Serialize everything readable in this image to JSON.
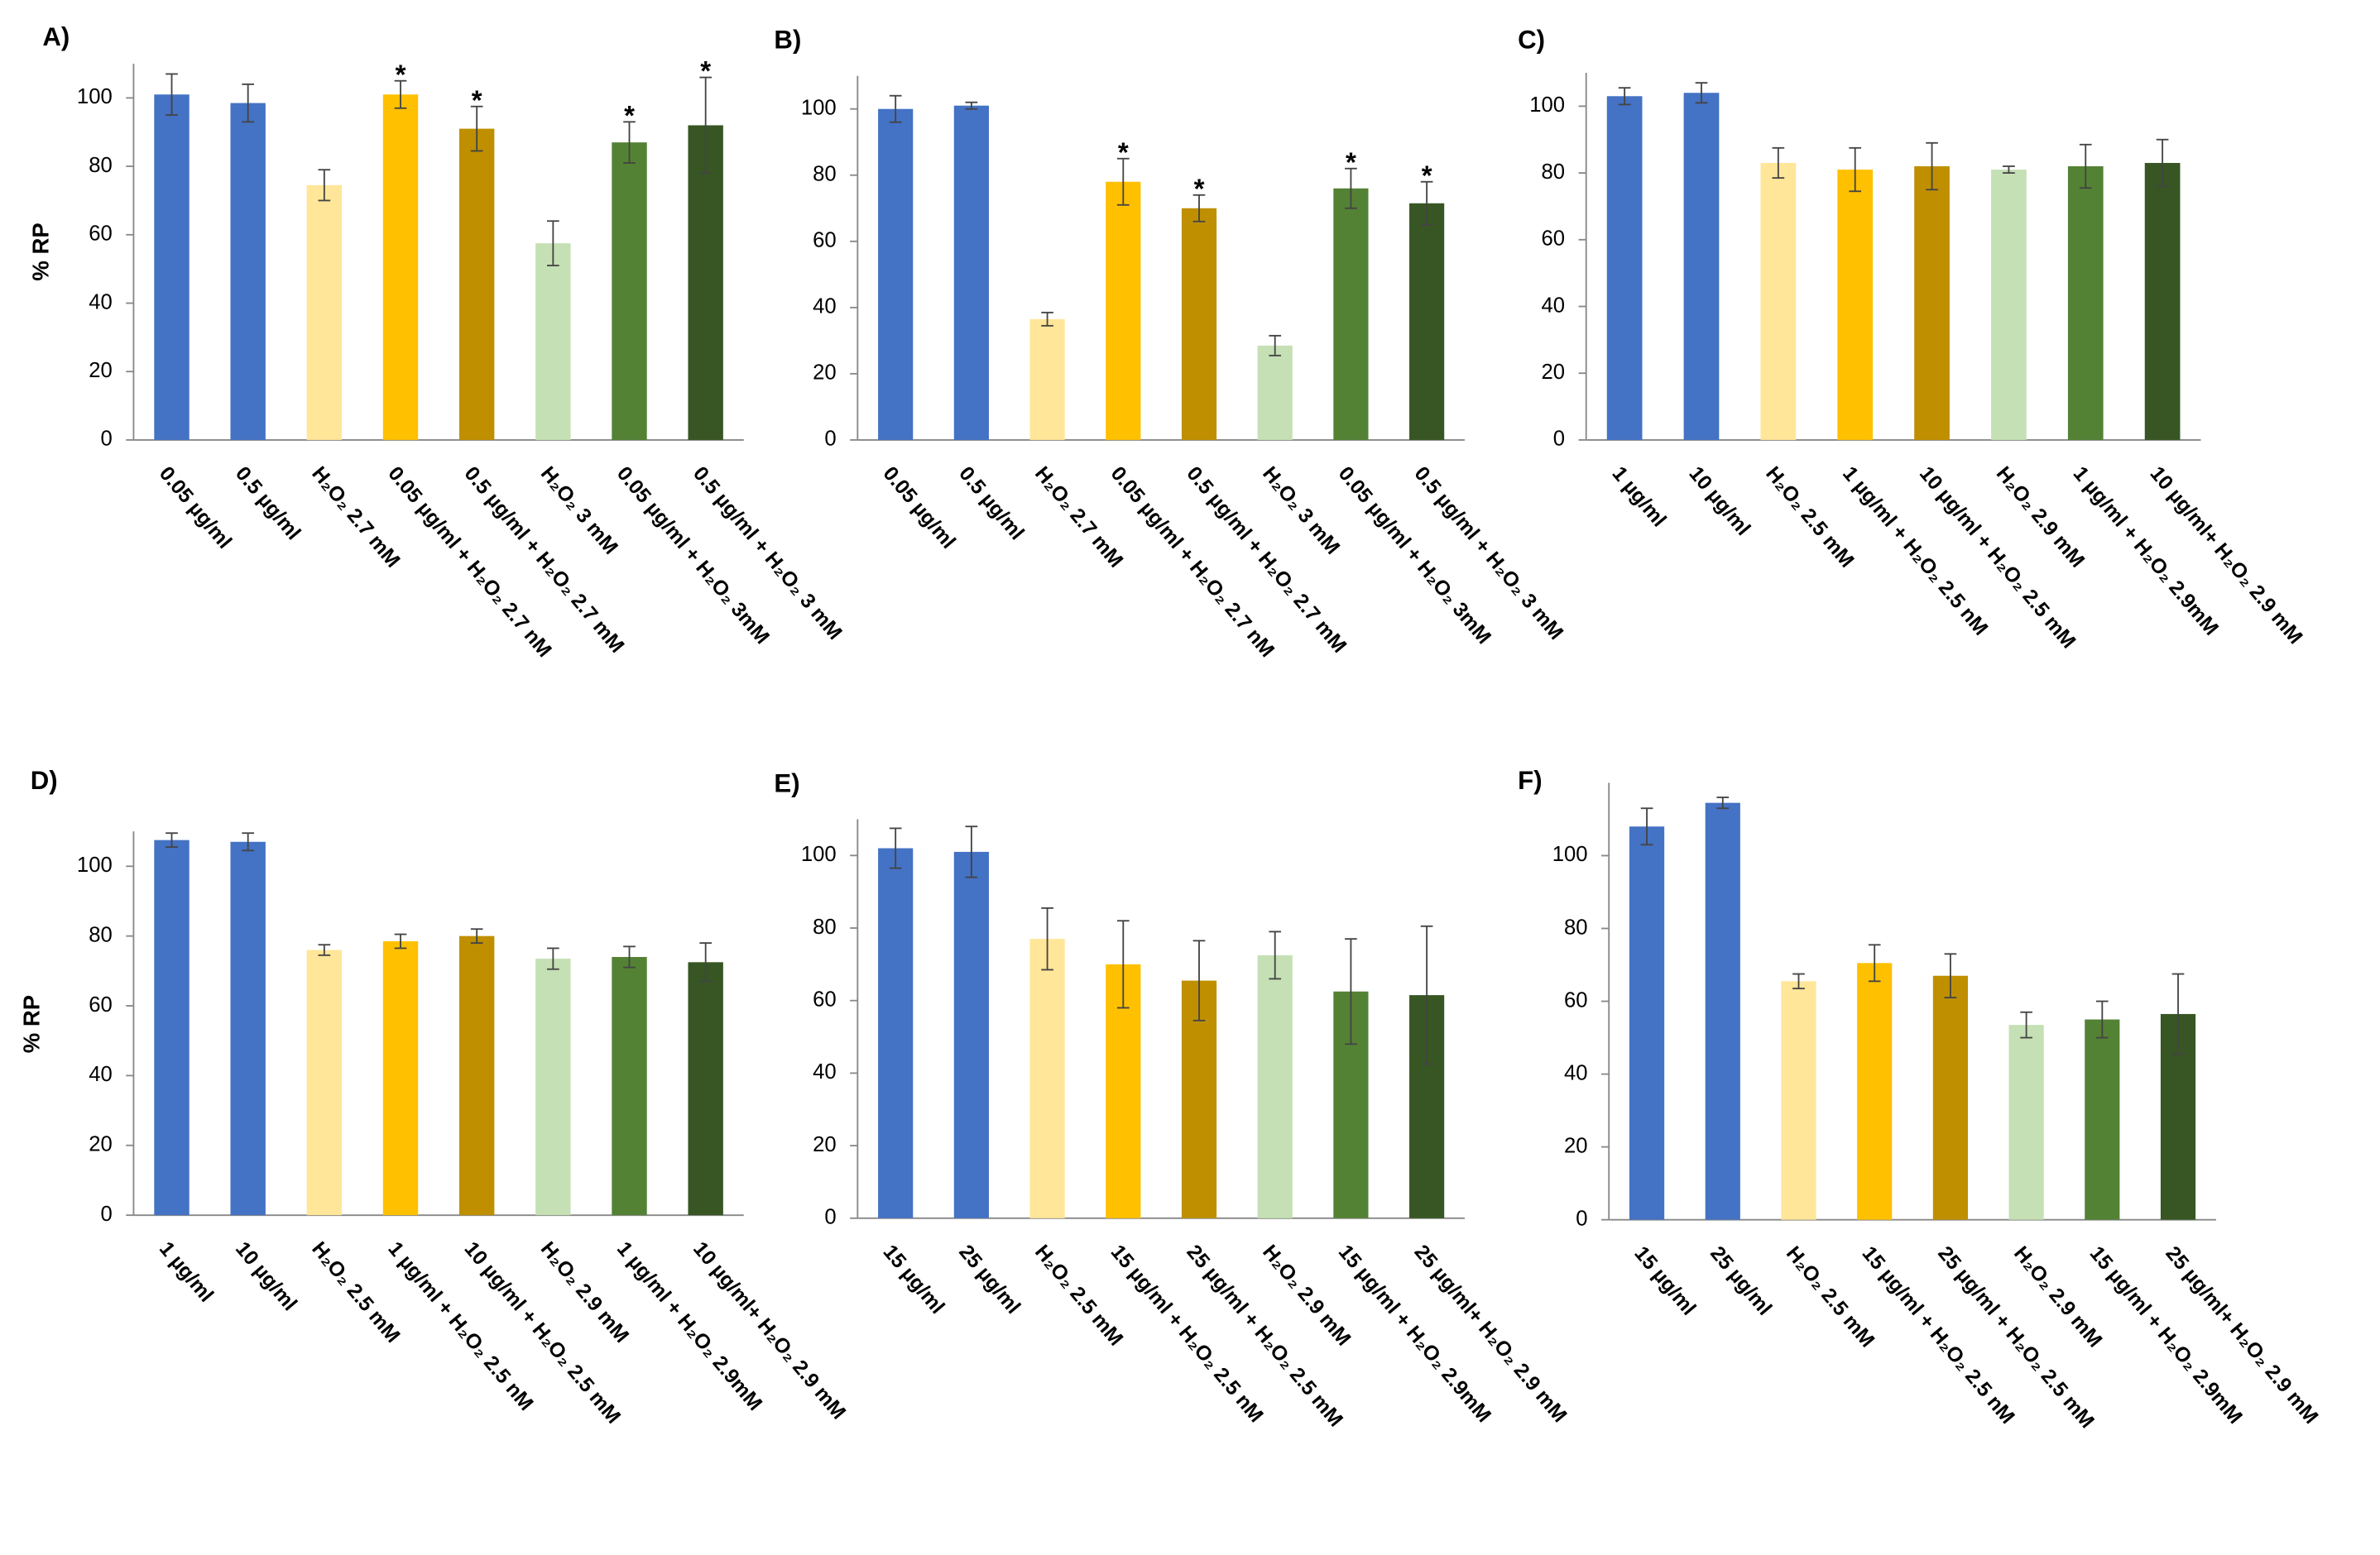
{
  "chart_data": [
    {
      "type": "bar",
      "title": "A)",
      "ylabel": "% RP",
      "categories": [
        "0.05 µg/ml",
        "0.5 µg/ml",
        "H₂O₂  2.7 mM",
        "0.05 µg/ml + H₂O₂ 2.7 nM",
        "0.5 µg/ml + H₂O₂ 2.7 mM",
        "H₂O₂  3 mM",
        "0.05 µg/ml + H₂O₂ 3mM",
        "0.5 µg/ml + H₂O₂  3 mM"
      ],
      "values": [
        101,
        98.5,
        74.5,
        101,
        91,
        57.5,
        87,
        92
      ],
      "errors": [
        6,
        5.5,
        4.5,
        4,
        6.5,
        6.5,
        6,
        14
      ],
      "markers": [
        null,
        null,
        null,
        "*",
        "*",
        null,
        "*",
        "*"
      ],
      "colors": [
        "#4472c4",
        "#4472c4",
        "#ffe699",
        "#ffc000",
        "#bf8f00",
        "#c5e0b4",
        "#548235",
        "#375623"
      ],
      "ylim": [
        0,
        110
      ],
      "yticks": [
        0,
        20,
        40,
        60,
        80,
        100
      ]
    },
    {
      "type": "bar",
      "title": "B)",
      "categories": [
        "0.05 µg/ml",
        "0.5 µg/ml",
        "H₂O₂  2.7 mM",
        "0.05 µg/ml + H₂O₂ 2.7 nM",
        "0.5 µg/ml + H₂O₂ 2.7 mM",
        "H₂O₂  3 mM",
        "0.05 µg/ml + H₂O₂ 3mM",
        "0.5 µg/ml + H₂O₂  3 mM"
      ],
      "values": [
        100,
        101,
        36.5,
        78,
        70,
        28.5,
        76,
        71.5
      ],
      "errors": [
        4,
        1,
        2,
        7,
        4,
        3,
        6,
        6.5
      ],
      "markers": [
        null,
        null,
        null,
        "*",
        "*",
        null,
        "*",
        "*"
      ],
      "colors": [
        "#4472c4",
        "#4472c4",
        "#ffe699",
        "#ffc000",
        "#bf8f00",
        "#c5e0b4",
        "#548235",
        "#375623"
      ],
      "ylim": [
        0,
        110
      ],
      "yticks": [
        0,
        20,
        40,
        60,
        80,
        100
      ]
    },
    {
      "type": "bar",
      "title": "C)",
      "categories": [
        "1 µg/ml",
        "10 µg/ml",
        "H₂O₂  2.5 mM",
        "1 µg/ml + H₂O₂ 2.5 nM",
        "10 µg/ml + H₂O₂ 2.5 mM",
        "H₂O₂  2.9 mM",
        "1 µg/ml + H₂O₂ 2.9mM",
        "10 µg/ml+ H₂O₂ 2.9 mM"
      ],
      "values": [
        103,
        104,
        83,
        81,
        82,
        81,
        82,
        83
      ],
      "errors": [
        2.5,
        3,
        4.5,
        6.5,
        7,
        1,
        6.5,
        7
      ],
      "colors": [
        "#4472c4",
        "#4472c4",
        "#ffe699",
        "#ffc000",
        "#bf8f00",
        "#c5e0b4",
        "#548235",
        "#375623"
      ],
      "ylim": [
        0,
        110
      ],
      "yticks": [
        0,
        20,
        40,
        60,
        80,
        100
      ]
    },
    {
      "type": "bar",
      "title": "D)",
      "ylabel": "% RP",
      "categories": [
        "1 µg/ml",
        "10 µg/ml",
        "H₂O₂  2.5 mM",
        "1 µg/ml + H₂O₂ 2.5 nM",
        "10 µg/ml + H₂O₂ 2.5 mM",
        "H₂O₂  2.9 mM",
        "1 µg/ml + H₂O₂ 2.9mM",
        "10 µg/ml+ H₂O₂ 2.9 mM"
      ],
      "values": [
        107.5,
        107,
        76,
        78.5,
        80,
        73.5,
        74,
        72.5
      ],
      "errors": [
        2,
        2.5,
        1.5,
        2,
        2,
        3,
        3,
        5.5
      ],
      "colors": [
        "#4472c4",
        "#4472c4",
        "#ffe699",
        "#ffc000",
        "#bf8f00",
        "#c5e0b4",
        "#548235",
        "#375623"
      ],
      "ylim": [
        0,
        110
      ],
      "yticks": [
        0,
        20,
        40,
        60,
        80,
        100
      ]
    },
    {
      "type": "bar",
      "title": "E)",
      "categories": [
        "15 µg/ml",
        "25 µg/ml",
        "H₂O₂  2.5 mM",
        "15 µg/ml + H₂O₂ 2.5 nM",
        "25 µg/ml + H₂O₂ 2.5 mM",
        "H₂O₂  2.9 mM",
        "15 µg/ml + H₂O₂ 2.9mM",
        "25 µg/ml+ H₂O₂ 2.9 mM"
      ],
      "values": [
        102,
        101,
        77,
        70,
        65.5,
        72.5,
        62.5,
        61.5
      ],
      "errors": [
        5.5,
        7,
        8.5,
        12,
        11,
        6.5,
        14.5,
        19
      ],
      "colors": [
        "#4472c4",
        "#4472c4",
        "#ffe699",
        "#ffc000",
        "#bf8f00",
        "#c5e0b4",
        "#548235",
        "#375623"
      ],
      "ylim": [
        0,
        110
      ],
      "yticks": [
        0,
        20,
        40,
        60,
        80,
        100
      ]
    },
    {
      "type": "bar",
      "title": "F)",
      "categories": [
        "15 µg/ml",
        "25 µg/ml",
        "H₂O₂  2.5 mM",
        "15 µg/ml + H₂O₂ 2.5 nM",
        "25 µg/ml + H₂O₂ 2.5 mM",
        "H₂O₂  2.9 mM",
        "15 µg/ml + H₂O₂ 2.9mM",
        "25 µg/ml+ H₂O₂ 2.9 mM"
      ],
      "values": [
        108,
        114.5,
        65.5,
        70.5,
        67,
        53.5,
        55,
        56.5
      ],
      "errors": [
        5,
        1.5,
        2,
        5,
        6,
        3.5,
        5,
        11
      ],
      "colors": [
        "#4472c4",
        "#4472c4",
        "#ffe699",
        "#ffc000",
        "#bf8f00",
        "#c5e0b4",
        "#548235",
        "#375623"
      ],
      "ylim": [
        0,
        120
      ],
      "yticks": [
        0,
        20,
        40,
        60,
        80,
        100
      ]
    }
  ]
}
